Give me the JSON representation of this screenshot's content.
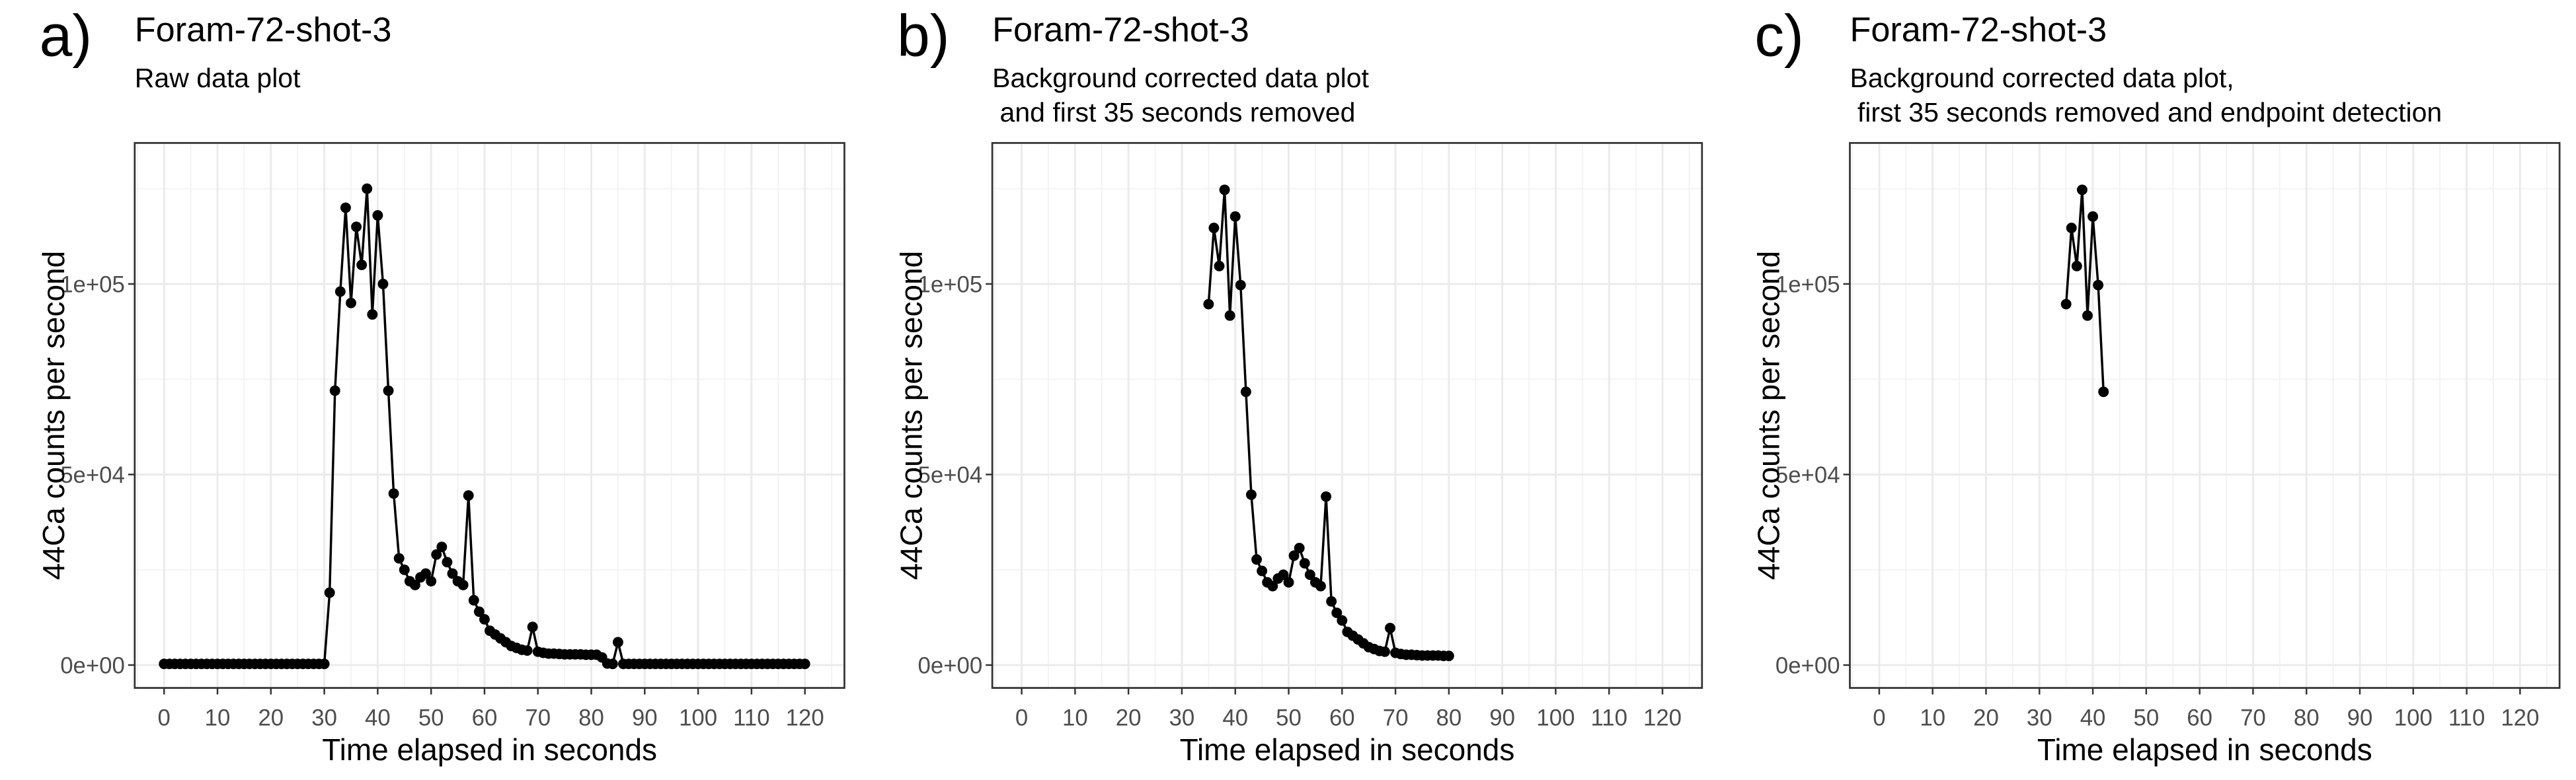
{
  "chart_data": [
    {
      "type": "line",
      "panel_label": "a)",
      "title": "Foram-72-shot-3",
      "subtitle": [
        "Raw data plot"
      ],
      "xlabel": "Time elapsed in seconds",
      "ylabel": "44Ca counts per second",
      "color": "#000000",
      "grid": true,
      "minor_grid": true,
      "xlim": [
        -5.5,
        127.4
      ],
      "ylim": [
        -6000,
        137000
      ],
      "xticks": [
        0,
        10,
        20,
        30,
        40,
        50,
        60,
        70,
        80,
        90,
        100,
        110,
        120
      ],
      "yticks": [
        {
          "value": 0,
          "label": "0e+00"
        },
        {
          "value": 50000,
          "label": "5e+04"
        },
        {
          "value": 100000,
          "label": "1e+05"
        }
      ],
      "x": [
        0,
        1,
        2,
        3,
        4,
        5,
        6,
        7,
        8,
        9,
        10,
        11,
        12,
        13,
        14,
        15,
        16,
        17,
        18,
        19,
        20,
        21,
        22,
        23,
        24,
        25,
        26,
        27,
        28,
        29,
        30,
        31,
        32,
        33,
        34,
        35,
        36,
        37,
        38,
        39,
        40,
        41,
        42,
        43,
        44,
        45,
        46,
        47,
        48,
        49,
        50,
        51,
        52,
        53,
        54,
        55,
        56,
        57,
        58,
        59,
        60,
        61,
        62,
        63,
        64,
        65,
        66,
        67,
        68,
        69,
        70,
        71,
        72,
        73,
        74,
        75,
        76,
        77,
        78,
        79,
        80,
        81,
        82,
        83,
        84,
        85,
        86,
        87,
        88,
        89,
        90,
        91,
        92,
        93,
        94,
        95,
        96,
        97,
        98,
        99,
        100,
        101,
        102,
        103,
        104,
        105,
        106,
        107,
        108,
        109,
        110,
        111,
        112,
        113,
        114,
        115,
        116,
        117,
        118,
        119,
        120
      ],
      "values": [
        300,
        300,
        300,
        300,
        300,
        300,
        300,
        300,
        300,
        300,
        300,
        300,
        300,
        300,
        300,
        300,
        300,
        300,
        300,
        300,
        300,
        300,
        300,
        300,
        300,
        300,
        300,
        300,
        300,
        300,
        300,
        19000,
        72000,
        98000,
        120000,
        95000,
        115000,
        105000,
        125000,
        92000,
        118000,
        100000,
        72000,
        45000,
        28000,
        25000,
        22000,
        21000,
        23000,
        24000,
        22000,
        29000,
        31000,
        27000,
        24000,
        22000,
        21000,
        44500,
        17000,
        14000,
        12000,
        9000,
        8000,
        7000,
        6000,
        5000,
        4500,
        4000,
        3800,
        10000,
        3500,
        3200,
        3000,
        3000,
        2900,
        2800,
        2800,
        2800,
        2800,
        2700,
        2700,
        2700,
        2000,
        400,
        300,
        6000,
        300,
        300,
        300,
        300,
        300,
        300,
        300,
        300,
        300,
        300,
        300,
        300,
        300,
        300,
        300,
        300,
        300,
        300,
        300,
        300,
        300,
        300,
        300,
        300,
        300,
        300,
        300,
        300,
        300,
        300,
        300,
        300,
        300,
        300,
        300
      ]
    },
    {
      "type": "line",
      "panel_label": "b)",
      "title": "Foram-72-shot-3",
      "subtitle": [
        "Background corrected data plot",
        " and first 35 seconds removed"
      ],
      "xlabel": "Time elapsed in seconds",
      "ylabel": "44Ca counts per second",
      "color": "#000000",
      "grid": true,
      "minor_grid": true,
      "xlim": [
        -5.5,
        127.4
      ],
      "ylim": [
        -6000,
        137000
      ],
      "xticks": [
        0,
        10,
        20,
        30,
        40,
        50,
        60,
        70,
        80,
        90,
        100,
        110,
        120
      ],
      "yticks": [
        {
          "value": 0,
          "label": "0e+00"
        },
        {
          "value": 50000,
          "label": "5e+04"
        },
        {
          "value": 100000,
          "label": "1e+05"
        }
      ],
      "x": [
        35,
        36,
        37,
        38,
        39,
        40,
        41,
        42,
        43,
        44,
        45,
        46,
        47,
        48,
        49,
        50,
        51,
        52,
        53,
        54,
        55,
        56,
        57,
        58,
        59,
        60,
        61,
        62,
        63,
        64,
        65,
        66,
        67,
        68,
        69,
        70,
        71,
        72,
        73,
        74,
        75,
        76,
        77,
        78,
        79,
        80
      ],
      "values": [
        94700,
        114700,
        104700,
        124700,
        91700,
        117700,
        99700,
        71700,
        44700,
        27700,
        24700,
        21700,
        20700,
        22700,
        23700,
        21700,
        28700,
        30700,
        26700,
        23700,
        21700,
        20700,
        44200,
        16700,
        13700,
        11700,
        8700,
        7700,
        6700,
        5700,
        4700,
        4200,
        3700,
        3500,
        9700,
        3200,
        2900,
        2700,
        2700,
        2600,
        2500,
        2500,
        2500,
        2500,
        2400,
        2400
      ]
    },
    {
      "type": "line",
      "panel_label": "c)",
      "title": "Foram-72-shot-3",
      "subtitle": [
        "Background corrected data plot,",
        " first 35 seconds removed and endpoint detection"
      ],
      "xlabel": "Time elapsed in seconds",
      "ylabel": "44Ca counts per second",
      "color": "#000000",
      "grid": true,
      "minor_grid": true,
      "xlim": [
        -5.5,
        127.4
      ],
      "ylim": [
        -6000,
        137000
      ],
      "xticks": [
        0,
        10,
        20,
        30,
        40,
        50,
        60,
        70,
        80,
        90,
        100,
        110,
        120
      ],
      "yticks": [
        {
          "value": 0,
          "label": "0e+00"
        },
        {
          "value": 50000,
          "label": "5e+04"
        },
        {
          "value": 100000,
          "label": "1e+05"
        }
      ],
      "x": [
        35,
        36,
        37,
        38,
        39,
        40,
        41,
        42
      ],
      "values": [
        94700,
        114700,
        104700,
        124700,
        91700,
        117700,
        99700,
        71700
      ]
    }
  ]
}
